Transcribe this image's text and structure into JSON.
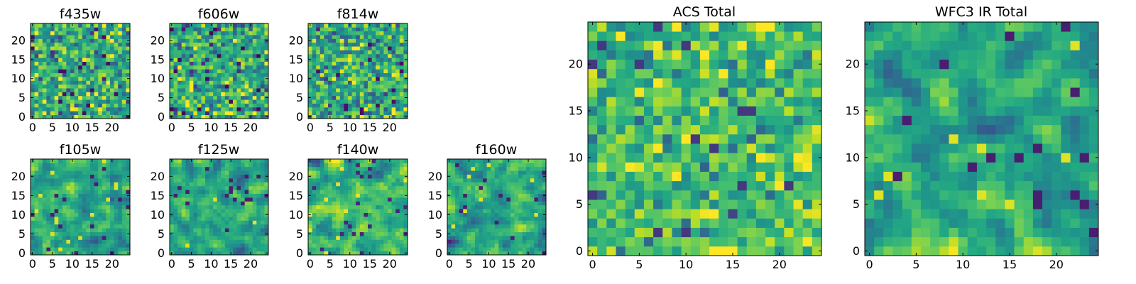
{
  "colormap": "viridis",
  "colors": {
    "low": "#440154",
    "mid": "#21918c",
    "high": "#fde725",
    "frame": "#000000"
  },
  "chart_data": [
    {
      "type": "heatmap",
      "title": "f435w",
      "grid_size": 25,
      "xlim": [
        0,
        24
      ],
      "ylim": [
        0,
        24
      ],
      "xticks": [
        0,
        5,
        10,
        15,
        20
      ],
      "yticks": [
        0,
        5,
        10,
        15,
        20
      ],
      "texture": "fine",
      "seed": 11,
      "mean": 0.62,
      "spread": 0.18,
      "smoothing": 0
    },
    {
      "type": "heatmap",
      "title": "f606w",
      "grid_size": 25,
      "xlim": [
        0,
        24
      ],
      "ylim": [
        0,
        24
      ],
      "xticks": [
        0,
        5,
        10,
        15,
        20
      ],
      "yticks": [
        0,
        5,
        10,
        15,
        20
      ],
      "texture": "fine",
      "seed": 23,
      "mean": 0.6,
      "spread": 0.18,
      "smoothing": 0
    },
    {
      "type": "heatmap",
      "title": "f814w",
      "grid_size": 25,
      "xlim": [
        0,
        24
      ],
      "ylim": [
        0,
        24
      ],
      "xticks": [
        0,
        5,
        10,
        15,
        20
      ],
      "yticks": [
        0,
        5,
        10,
        15,
        20
      ],
      "texture": "fine",
      "seed": 37,
      "mean": 0.62,
      "spread": 0.18,
      "smoothing": 0
    },
    {
      "type": "heatmap",
      "title": "f105w",
      "grid_size": 25,
      "xlim": [
        0,
        24
      ],
      "ylim": [
        0,
        24
      ],
      "xticks": [
        0,
        5,
        10,
        15,
        20
      ],
      "yticks": [
        0,
        5,
        10,
        15,
        20
      ],
      "texture": "smooth",
      "seed": 41,
      "mean": 0.6,
      "spread": 0.16,
      "smoothing": 1
    },
    {
      "type": "heatmap",
      "title": "f125w",
      "grid_size": 25,
      "xlim": [
        0,
        24
      ],
      "ylim": [
        0,
        24
      ],
      "xticks": [
        0,
        5,
        10,
        15,
        20
      ],
      "yticks": [
        0,
        5,
        10,
        15,
        20
      ],
      "texture": "smooth",
      "seed": 53,
      "mean": 0.6,
      "spread": 0.16,
      "smoothing": 1
    },
    {
      "type": "heatmap",
      "title": "f140w",
      "grid_size": 25,
      "xlim": [
        0,
        24
      ],
      "ylim": [
        0,
        24
      ],
      "xticks": [
        0,
        5,
        10,
        15,
        20
      ],
      "yticks": [
        0,
        5,
        10,
        15,
        20
      ],
      "texture": "smooth",
      "seed": 67,
      "mean": 0.62,
      "spread": 0.16,
      "smoothing": 1
    },
    {
      "type": "heatmap",
      "title": "f160w",
      "grid_size": 25,
      "xlim": [
        0,
        24
      ],
      "ylim": [
        0,
        24
      ],
      "xticks": [
        0,
        5,
        10,
        15,
        20
      ],
      "yticks": [
        0,
        5,
        10,
        15,
        20
      ],
      "texture": "smooth",
      "seed": 79,
      "mean": 0.6,
      "spread": 0.16,
      "smoothing": 1
    },
    {
      "type": "heatmap",
      "title": "ACS Total",
      "grid_size": 25,
      "xlim": [
        0,
        24
      ],
      "ylim": [
        0,
        24
      ],
      "xticks": [
        0,
        5,
        10,
        15,
        20
      ],
      "yticks": [
        0,
        5,
        10,
        15,
        20
      ],
      "texture": "fine",
      "seed": 97,
      "mean": 0.68,
      "spread": 0.16,
      "smoothing": 0
    },
    {
      "type": "heatmap",
      "title": "WFC3 IR Total",
      "grid_size": 25,
      "xlim": [
        0,
        24
      ],
      "ylim": [
        0,
        24
      ],
      "xticks": [
        0,
        5,
        10,
        15,
        20
      ],
      "yticks": [
        0,
        5,
        10,
        15,
        20
      ],
      "texture": "smooth",
      "seed": 113,
      "mean": 0.6,
      "spread": 0.16,
      "smoothing": 1
    }
  ]
}
